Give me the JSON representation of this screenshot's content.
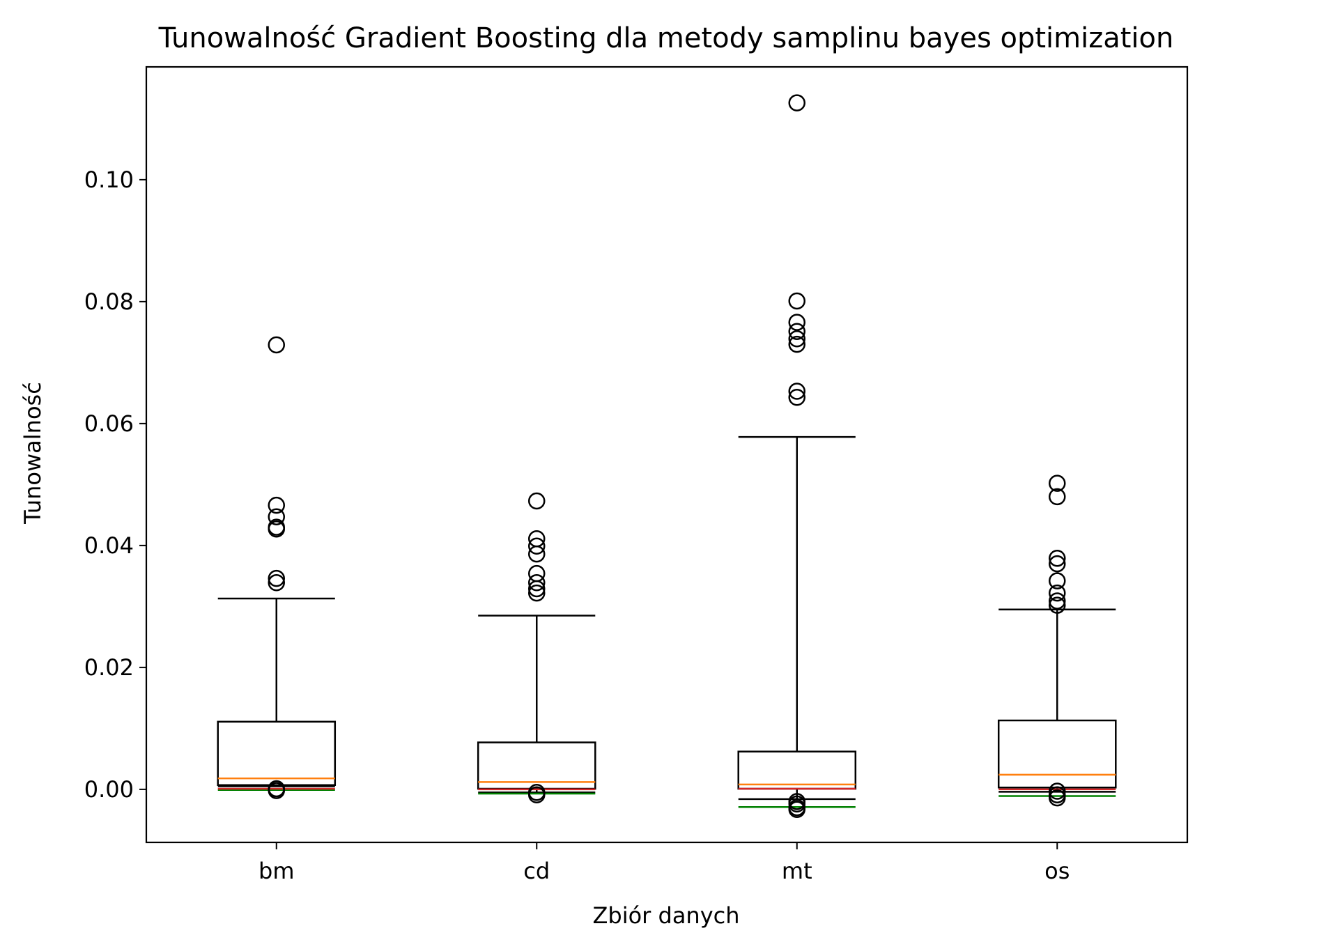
{
  "chart_data": {
    "type": "box",
    "title": "Tunowalność Gradient Boosting dla metody samplinu bayes optimization",
    "xlabel": "Zbiór danych",
    "ylabel": "Tunowalność",
    "categories": [
      "bm",
      "cd",
      "mt",
      "os"
    ],
    "ylim": [
      -0.0087,
      0.1185
    ],
    "yticks": [
      0.0,
      0.02,
      0.04,
      0.06,
      0.08,
      0.1
    ],
    "ytick_labels": [
      "0.00",
      "0.02",
      "0.04",
      "0.06",
      "0.08",
      "0.10"
    ],
    "grid": false,
    "colors": {
      "box": "#000000",
      "median": "#ff7f0e",
      "red_line": "#d62728",
      "green_line": "#008000"
    },
    "boxes": [
      {
        "category": "bm",
        "whisker_low": 0.0005,
        "q1": 0.0007,
        "median": 0.0018,
        "q3": 0.0111,
        "whisker_high": 0.0313,
        "red_line": 0.0001,
        "green_line": -0.0001,
        "outliers": [
          0.0729,
          0.0466,
          0.0447,
          0.043,
          0.0427,
          0.0346,
          0.0339,
          0.0001,
          -0.0002
        ]
      },
      {
        "category": "cd",
        "whisker_low": -0.0005,
        "q1": 0.0001,
        "median": 0.0012,
        "q3": 0.0077,
        "whisker_high": 0.0285,
        "red_line": 0.0,
        "green_line": -0.0007,
        "outliers": [
          0.0473,
          0.0411,
          0.0399,
          0.0386,
          0.0354,
          0.0339,
          0.0329,
          0.0322,
          -0.0005,
          -0.0009
        ]
      },
      {
        "category": "mt",
        "whisker_low": -0.0016,
        "q1": 0.0001,
        "median": 0.0008,
        "q3": 0.0062,
        "whisker_high": 0.0578,
        "red_line": 0.0001,
        "green_line": -0.0029,
        "outliers": [
          0.1126,
          0.0801,
          0.0766,
          0.0751,
          0.0739,
          0.073,
          0.0653,
          0.0643,
          -0.002,
          -0.0024,
          -0.003,
          -0.0033
        ]
      },
      {
        "category": "os",
        "whisker_low": -0.0004,
        "q1": 0.0003,
        "median": 0.0024,
        "q3": 0.0113,
        "whisker_high": 0.0295,
        "red_line": 0.0,
        "green_line": -0.0011,
        "outliers": [
          0.0502,
          0.048,
          0.0379,
          0.037,
          0.0342,
          0.0322,
          0.0309,
          0.0302,
          -0.0003,
          -0.0009,
          -0.0014
        ]
      }
    ]
  }
}
